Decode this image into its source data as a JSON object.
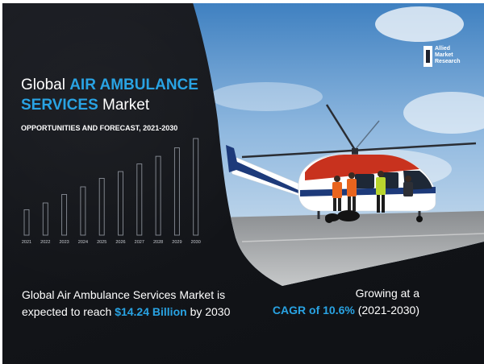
{
  "title": {
    "line1_plain": "Global",
    "line1_accent": "AIR AMBULANCE",
    "line2_accent": "SERVICES",
    "line2_plain": "Market"
  },
  "subtitle": "OPPORTUNITIES AND FORECAST, 2021-2030",
  "chart_data": {
    "type": "bar",
    "categories": [
      "2021",
      "2022",
      "2023",
      "2024",
      "2025",
      "2026",
      "2027",
      "2028",
      "2029",
      "2030"
    ],
    "values": [
      30,
      38,
      48,
      57,
      67,
      75,
      84,
      93,
      103,
      114
    ],
    "title": "",
    "xlabel": "",
    "ylabel": ""
  },
  "brand": {
    "line1": "Allied",
    "line2": "Market",
    "line3": "Research"
  },
  "bottom_left": {
    "line1": "Global Air Ambulance Services Market is",
    "line2_prefix": "expected to reach",
    "value": "$14.24 Billion",
    "line2_suffix": "by 2030"
  },
  "bottom_right": {
    "line1": "Growing at a",
    "cagr": "CAGR of 10.6%",
    "period": "(2021-2030)"
  },
  "colors": {
    "accent": "#29a3e3",
    "background": "#15171c",
    "helicopter_red": "#c8321e"
  }
}
